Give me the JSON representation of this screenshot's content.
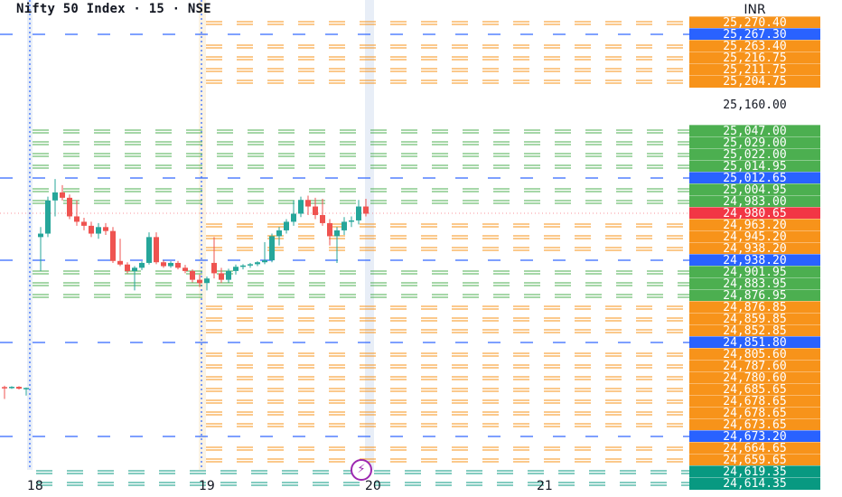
{
  "chart_title": "Nifty 50 Index · 15 · NSE",
  "currency": "INR",
  "colors": {
    "orange": "#f7931a",
    "green": "#4caf50",
    "blue": "#2962ff",
    "red": "#f23645",
    "teal": "#089981",
    "candle_up": "#26a69a",
    "candle_down": "#ef5350"
  },
  "icons": {
    "event_marker": "lightning-bolt-icon"
  },
  "chart_data": {
    "type": "candlestick",
    "title": "Nifty 50 Index · 15 · NSE",
    "y_unit": "INR",
    "ylim": [
      24614,
      25280
    ],
    "x_ticks": [
      "18",
      "19",
      "20",
      "21"
    ],
    "grid": false,
    "last_price": "24,980.65",
    "candles": [
      {
        "o": 24705,
        "h": 24716,
        "l": 24680,
        "c": 24700
      },
      {
        "o": 24700,
        "h": 24712,
        "l": 24690,
        "c": 24707
      },
      {
        "o": 24707,
        "h": 24712,
        "l": 24686,
        "c": 24692
      },
      {
        "o": 24692,
        "h": 24702,
        "l": 24682,
        "c": 24698
      },
      {
        "o": 24945,
        "h": 24960,
        "l": 24905,
        "c": 24950
      },
      {
        "o": 24950,
        "h": 24992,
        "l": 24945,
        "c": 24985
      },
      {
        "o": 24985,
        "h": 25012,
        "l": 24976,
        "c": 25000
      },
      {
        "o": 25000,
        "h": 25008,
        "l": 24985,
        "c": 24990
      },
      {
        "o": 24990,
        "h": 24996,
        "l": 24972,
        "c": 24976
      },
      {
        "o": 24976,
        "h": 24985,
        "l": 24962,
        "c": 24968
      },
      {
        "o": 24968,
        "h": 24974,
        "l": 24955,
        "c": 24962
      },
      {
        "o": 24962,
        "h": 24968,
        "l": 24945,
        "c": 24950
      },
      {
        "o": 24950,
        "h": 24966,
        "l": 24944,
        "c": 24960
      },
      {
        "o": 24960,
        "h": 24966,
        "l": 24948,
        "c": 24954
      },
      {
        "o": 24954,
        "h": 24960,
        "l": 24930,
        "c": 24936
      },
      {
        "o": 24936,
        "h": 24944,
        "l": 24920,
        "c": 24925
      },
      {
        "o": 24925,
        "h": 24932,
        "l": 24900,
        "c": 24905
      },
      {
        "o": 24905,
        "h": 24920,
        "l": 24880,
        "c": 24915
      },
      {
        "o": 24915,
        "h": 24935,
        "l": 24908,
        "c": 24930
      },
      {
        "o": 24930,
        "h": 24952,
        "l": 24925,
        "c": 24945
      },
      {
        "o": 24945,
        "h": 24952,
        "l": 24926,
        "c": 24932
      },
      {
        "o": 24932,
        "h": 24938,
        "l": 24915,
        "c": 24920
      },
      {
        "o": 24920,
        "h": 24935,
        "l": 24915,
        "c": 24930
      },
      {
        "o": 24930,
        "h": 24936,
        "l": 24910,
        "c": 24915
      },
      {
        "o": 24915,
        "h": 24924,
        "l": 24900,
        "c": 24905
      },
      {
        "o": 24905,
        "h": 24910,
        "l": 24886,
        "c": 24890
      },
      {
        "o": 24890,
        "h": 24898,
        "l": 24882,
        "c": 24885
      },
      {
        "o": 24885,
        "h": 24895,
        "l": 24880,
        "c": 24892
      },
      {
        "o": 24930,
        "h": 24945,
        "l": 24892,
        "c": 24900
      },
      {
        "o": 24900,
        "h": 24915,
        "l": 24885,
        "c": 24890
      },
      {
        "o": 24890,
        "h": 24912,
        "l": 24886,
        "c": 24905
      },
      {
        "o": 24905,
        "h": 24925,
        "l": 24898,
        "c": 24918
      },
      {
        "o": 24918,
        "h": 24926,
        "l": 24910,
        "c": 24922
      },
      {
        "o": 24922,
        "h": 24930,
        "l": 24915,
        "c": 24926
      },
      {
        "o": 24926,
        "h": 24935,
        "l": 24920,
        "c": 24932
      },
      {
        "o": 24932,
        "h": 24942,
        "l": 24926,
        "c": 24938
      },
      {
        "o": 24938,
        "h": 24950,
        "l": 24932,
        "c": 24946
      },
      {
        "o": 24946,
        "h": 24960,
        "l": 24940,
        "c": 24955
      },
      {
        "o": 24955,
        "h": 24972,
        "l": 24950,
        "c": 24968
      },
      {
        "o": 24968,
        "h": 24985,
        "l": 24962,
        "c": 24980
      },
      {
        "o": 24980,
        "h": 24992,
        "l": 24975,
        "c": 24986
      },
      {
        "o": 24986,
        "h": 24994,
        "l": 24978,
        "c": 24982
      },
      {
        "o": 24982,
        "h": 24990,
        "l": 24972,
        "c": 24978
      },
      {
        "o": 24978,
        "h": 24988,
        "l": 24962,
        "c": 24966
      },
      {
        "o": 24966,
        "h": 24972,
        "l": 24940,
        "c": 24946
      },
      {
        "o": 24946,
        "h": 24960,
        "l": 24930,
        "c": 24955
      },
      {
        "o": 24955,
        "h": 24975,
        "l": 24948,
        "c": 24968
      },
      {
        "o": 24968,
        "h": 24976,
        "l": 24960,
        "c": 24970
      },
      {
        "o": 24970,
        "h": 24986,
        "l": 24964,
        "c": 24982
      },
      {
        "o": 24982,
        "h": 24988,
        "l": 24976,
        "c": 24980
      }
    ],
    "prev_candles_count": 4,
    "levels": [
      {
        "price": 25270.4,
        "label": "25,270.40",
        "color": "orange",
        "style": "double",
        "from": "mid"
      },
      {
        "price": 25267.3,
        "label": "25,267.30",
        "color": "blue",
        "style": "single",
        "from": "left"
      },
      {
        "price": 25263.4,
        "label": "25,263.40",
        "color": "orange",
        "style": "double",
        "from": "mid"
      },
      {
        "price": 25216.75,
        "label": "25,216.75",
        "color": "orange",
        "style": "double",
        "from": "mid"
      },
      {
        "price": 25211.75,
        "label": "25,211.75",
        "color": "orange",
        "style": "double",
        "from": "mid"
      },
      {
        "price": 25204.75,
        "label": "25,204.75",
        "color": "orange",
        "style": "double",
        "from": "mid"
      },
      {
        "price": 25160.0,
        "label": "25,160.00",
        "color": "none",
        "style": "none",
        "from": "none"
      },
      {
        "price": 25047.0,
        "label": "25,047.00",
        "color": "green",
        "style": "double",
        "from": "mid"
      },
      {
        "price": 25029.0,
        "label": "25,029.00",
        "color": "green",
        "style": "double",
        "from": "mid"
      },
      {
        "price": 25022.0,
        "label": "25,022.00",
        "color": "green",
        "style": "double",
        "from": "mid"
      },
      {
        "price": 25014.95,
        "label": "25,014.95",
        "color": "green",
        "style": "double",
        "from": "mid"
      },
      {
        "price": 25012.65,
        "label": "25,012.65",
        "color": "blue",
        "style": "single",
        "from": "left"
      },
      {
        "price": 25004.95,
        "label": "25,004.95",
        "color": "green",
        "style": "double",
        "from": "mid"
      },
      {
        "price": 24983.0,
        "label": "24,983.00",
        "color": "green",
        "style": "double",
        "from": "mid"
      },
      {
        "price": 24980.65,
        "label": "24,980.65",
        "color": "red",
        "style": "dotted",
        "from": "left"
      },
      {
        "price": 24963.2,
        "label": "24,963.20",
        "color": "orange",
        "style": "double",
        "from": "mid"
      },
      {
        "price": 24945.2,
        "label": "24,945.20",
        "color": "orange",
        "style": "double",
        "from": "mid"
      },
      {
        "price": 24938.2,
        "label": "24,938.20",
        "color": "orange",
        "style": "double",
        "from": "mid"
      },
      {
        "price": 24938.2,
        "label": "24,938.20",
        "color": "blue",
        "style": "single",
        "from": "left"
      },
      {
        "price": 24901.95,
        "label": "24,901.95",
        "color": "green",
        "style": "double",
        "from": "mid"
      },
      {
        "price": 24883.95,
        "label": "24,883.95",
        "color": "green",
        "style": "double",
        "from": "mid"
      },
      {
        "price": 24876.95,
        "label": "24,876.95",
        "color": "green",
        "style": "double",
        "from": "mid"
      },
      {
        "price": 24876.85,
        "label": "24,876.85",
        "color": "orange",
        "style": "double",
        "from": "mid"
      },
      {
        "price": 24859.85,
        "label": "24,859.85",
        "color": "orange",
        "style": "double",
        "from": "mid"
      },
      {
        "price": 24852.85,
        "label": "24,852.85",
        "color": "orange",
        "style": "double",
        "from": "mid"
      },
      {
        "price": 24851.8,
        "label": "24,851.80",
        "color": "blue",
        "style": "single",
        "from": "left"
      },
      {
        "price": 24805.6,
        "label": "24,805.60",
        "color": "orange",
        "style": "double",
        "from": "mid"
      },
      {
        "price": 24787.6,
        "label": "24,787.60",
        "color": "orange",
        "style": "double",
        "from": "mid"
      },
      {
        "price": 24780.6,
        "label": "24,780.60",
        "color": "orange",
        "style": "double",
        "from": "mid"
      },
      {
        "price": 24685.65,
        "label": "24,685.65",
        "color": "orange",
        "style": "double",
        "from": "mid"
      },
      {
        "price": 24678.65,
        "label": "24,678.65",
        "color": "orange",
        "style": "double",
        "from": "mid"
      },
      {
        "price": 24678.65,
        "label": "24,678.65",
        "color": "orange",
        "style": "double",
        "from": "mid"
      },
      {
        "price": 24673.65,
        "label": "24,673.65",
        "color": "orange",
        "style": "double",
        "from": "mid"
      },
      {
        "price": 24673.2,
        "label": "24,673.20",
        "color": "blue",
        "style": "single",
        "from": "left"
      },
      {
        "price": 24664.65,
        "label": "24,664.65",
        "color": "orange",
        "style": "double",
        "from": "mid"
      },
      {
        "price": 24659.65,
        "label": "24,659.65",
        "color": "orange",
        "style": "double",
        "from": "mid"
      },
      {
        "price": 24619.35,
        "label": "24,619.35",
        "color": "teal",
        "style": "double",
        "from": "mid"
      },
      {
        "price": 24614.35,
        "label": "24,614.35",
        "color": "teal",
        "style": "double",
        "from": "mid"
      }
    ]
  }
}
